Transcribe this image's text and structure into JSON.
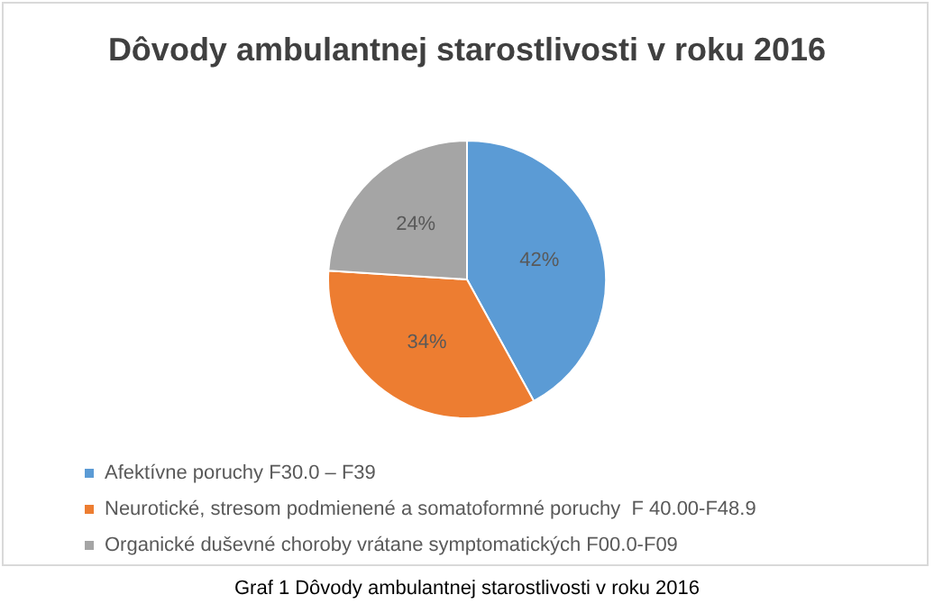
{
  "chart_data": {
    "type": "pie",
    "title": "Dôvody ambulantnej starostlivosti v roku 2016",
    "categories": [
      "Afektívne poruchy F30.0 – F39",
      "Neurotické, stresom podmienené a somatoformné poruchy  F 40.00-F48.9",
      "Organické duševné choroby vrátane symptomatických F00.0-F09"
    ],
    "values": [
      42,
      34,
      24
    ],
    "colors": [
      "#5b9bd5",
      "#ed7d31",
      "#a5a5a5"
    ],
    "value_labels": [
      "42%",
      "34%",
      "24%"
    ],
    "legend": "bottom left",
    "annotations": [
      "Graf 1 Dôvody ambulantnej starostlivosti v roku 2016"
    ]
  }
}
